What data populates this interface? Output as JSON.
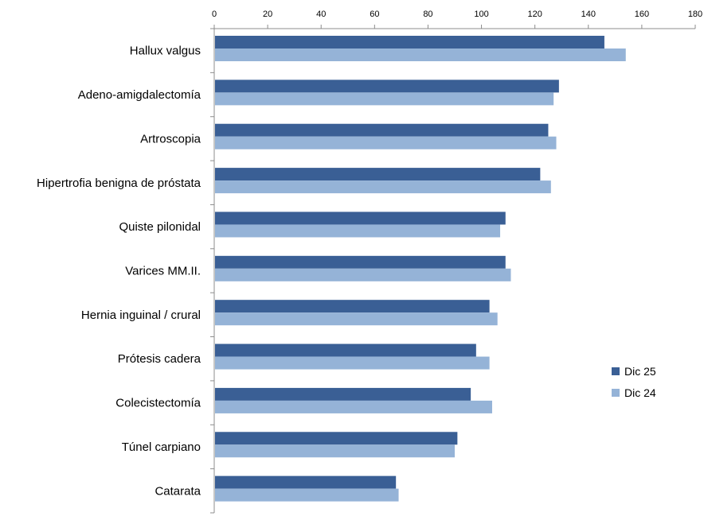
{
  "chart_data": {
    "type": "bar",
    "orientation": "horizontal",
    "categories": [
      "Hallux valgus",
      "Adeno-amigdalectomía",
      "Artroscopia",
      "Hipertrofia benigna de próstata",
      "Quiste pilonidal",
      "Varices MM.II.",
      "Hernia inguinal / crural",
      "Prótesis cadera",
      "Colecistectomía",
      "Túnel carpiano",
      "Catarata"
    ],
    "series": [
      {
        "name": "Dic 25",
        "color": "#3a5f95",
        "values": [
          146,
          129,
          125,
          122,
          109,
          109,
          103,
          98,
          96,
          91,
          68
        ]
      },
      {
        "name": "Dic 24",
        "color": "#95b3d7",
        "values": [
          154,
          127,
          128,
          126,
          107,
          111,
          106,
          103,
          104,
          90,
          69
        ]
      }
    ],
    "xlim": [
      0,
      180
    ],
    "xticks": [
      "0",
      "20",
      "40",
      "60",
      "80",
      "100",
      "120",
      "140",
      "160",
      "180"
    ],
    "x_axis_position": "top",
    "grid": false,
    "legend_position": "right"
  }
}
